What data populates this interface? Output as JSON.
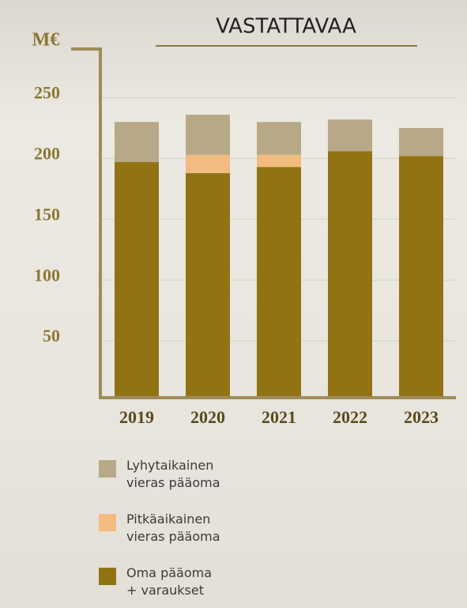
{
  "chart_data": {
    "type": "stacked-bar",
    "title": "VASTATTAVAA",
    "y_label": "M€",
    "categories": [
      "2019",
      "2020",
      "2021",
      "2022",
      "2023"
    ],
    "series": [
      {
        "name": "Lyhytaikainen\nvieras pääoma",
        "color": "#b7a987",
        "values": [
          33,
          33,
          27,
          26,
          23
        ]
      },
      {
        "name": "Pitkäaikainen\nvieras pääoma",
        "color": "#f2bb80",
        "values": [
          0,
          15,
          10,
          0,
          0
        ]
      },
      {
        "name": "Oma pääoma\n+ varaukset",
        "color": "#927314",
        "values": [
          197,
          188,
          193,
          206,
          202
        ]
      }
    ],
    "ylim": [
      0,
      290
    ],
    "yticks": [
      50,
      100,
      150,
      200,
      250
    ],
    "grid": true
  }
}
